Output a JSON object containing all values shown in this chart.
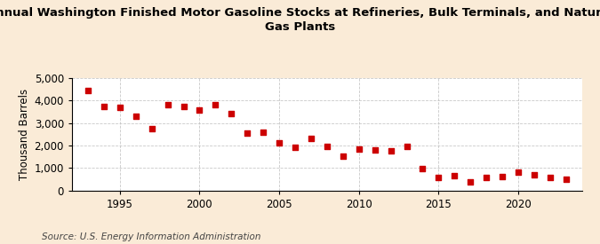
{
  "title": "Annual Washington Finished Motor Gasoline Stocks at Refineries, Bulk Terminals, and Natural\nGas Plants",
  "ylabel": "Thousand Barrels",
  "source": "Source: U.S. Energy Information Administration",
  "background_color": "#faebd7",
  "plot_background_color": "#ffffff",
  "marker_color": "#cc0000",
  "years": [
    1993,
    1994,
    1995,
    1996,
    1997,
    1998,
    1999,
    2000,
    2001,
    2002,
    2003,
    2004,
    2005,
    2006,
    2007,
    2008,
    2009,
    2010,
    2011,
    2012,
    2013,
    2014,
    2015,
    2016,
    2017,
    2018,
    2019,
    2020,
    2021,
    2022,
    2023
  ],
  "values": [
    4450,
    3750,
    3700,
    3300,
    2750,
    3800,
    3750,
    3560,
    3800,
    3430,
    2550,
    2580,
    2100,
    1900,
    2330,
    1950,
    1540,
    1820,
    1790,
    1760,
    1940,
    960,
    590,
    650,
    370,
    590,
    620,
    810,
    700,
    560,
    490
  ],
  "ylim": [
    0,
    5000
  ],
  "yticks": [
    0,
    1000,
    2000,
    3000,
    4000,
    5000
  ],
  "xlim": [
    1992,
    2024
  ],
  "xticks": [
    1995,
    2000,
    2005,
    2010,
    2015,
    2020
  ],
  "grid_color": "#bbbbbb",
  "title_fontsize": 9.5,
  "axis_fontsize": 8.5,
  "tick_fontsize": 8.5,
  "source_fontsize": 7.5
}
